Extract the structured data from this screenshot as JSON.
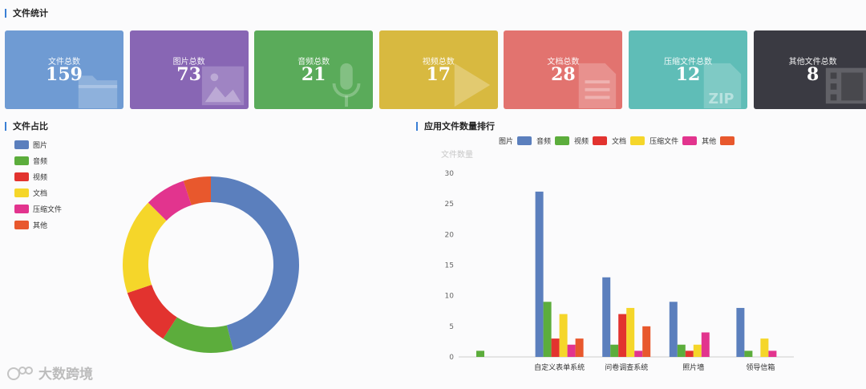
{
  "stats_section": {
    "title": "文件统计"
  },
  "stat_cards": [
    {
      "label": "文件总数",
      "value": "159",
      "color": "#6f9bd3",
      "icon": "folder-icon"
    },
    {
      "label": "图片总数",
      "value": "73",
      "color": "#8866b4",
      "icon": "image-icon"
    },
    {
      "label": "音频总数",
      "value": "21",
      "color": "#5aab5a",
      "icon": "microphone-icon"
    },
    {
      "label": "视频总数",
      "value": "17",
      "color": "#d8b940",
      "icon": "play-icon"
    },
    {
      "label": "文档总数",
      "value": "28",
      "color": "#e2736f",
      "icon": "document-icon"
    },
    {
      "label": "压缩文件总数",
      "value": "12",
      "color": "#5fbdb7",
      "icon": "zip-icon"
    },
    {
      "label": "其他文件总数",
      "value": "8",
      "color": "#3a3a42",
      "icon": "film-icon"
    }
  ],
  "pie_section": {
    "title": "文件占比"
  },
  "bar_section": {
    "title": "应用文件数量排行"
  },
  "watermark": {
    "text": "大数跨境"
  },
  "chart_data": [
    {
      "type": "pie",
      "style": "donut",
      "legend_position": "top-left",
      "categories": [
        "图片",
        "音频",
        "视频",
        "文档",
        "压缩文件",
        "其他"
      ],
      "values": [
        73,
        21,
        17,
        28,
        12,
        8
      ],
      "colors": [
        "#5b7fbd",
        "#5cad3c",
        "#e2332f",
        "#f5d62a",
        "#e2348e",
        "#e8582d"
      ]
    },
    {
      "type": "bar",
      "legend_position": "top",
      "ylabel": "文件数量",
      "ylim": [
        0,
        30
      ],
      "yticks": [
        0,
        5,
        10,
        15,
        20,
        25,
        30
      ],
      "grid": false,
      "categories": [
        "",
        "自定义表单系统",
        "问卷调查系统",
        "照片墙",
        "领导信箱"
      ],
      "series": [
        {
          "name": "图片",
          "color": "#5b7fbd",
          "values": [
            0,
            27,
            13,
            9,
            8
          ]
        },
        {
          "name": "音频",
          "color": "#5cad3c",
          "values": [
            1,
            9,
            2,
            2,
            1
          ]
        },
        {
          "name": "视频",
          "color": "#e2332f",
          "values": [
            0,
            3,
            7,
            1,
            0
          ]
        },
        {
          "name": "文档",
          "color": "#f5d62a",
          "values": [
            0,
            7,
            8,
            2,
            3
          ]
        },
        {
          "name": "压缩文件",
          "color": "#e2348e",
          "values": [
            0,
            2,
            1,
            4,
            1
          ]
        },
        {
          "name": "其他",
          "color": "#e8582d",
          "values": [
            0,
            3,
            5,
            0,
            0
          ]
        }
      ]
    }
  ]
}
